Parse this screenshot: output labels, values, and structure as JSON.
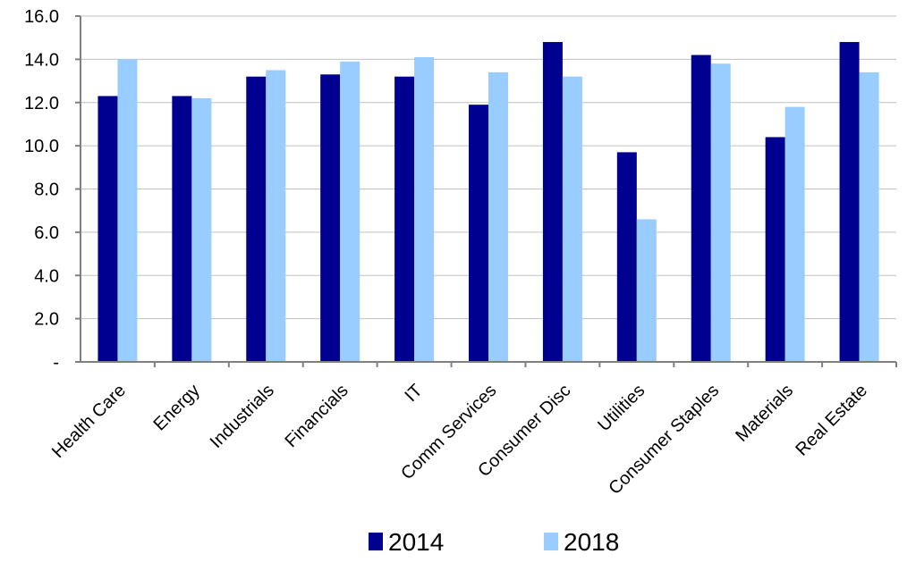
{
  "chart_data": {
    "type": "bar",
    "categories": [
      "Health Care",
      "Energy",
      "Industrials",
      "Financials",
      "IT",
      "Comm Services",
      "Consumer Disc",
      "Utilities",
      "Consumer Staples",
      "Materials",
      "Real Estate"
    ],
    "series": [
      {
        "name": "2014",
        "color": "#000090",
        "values": [
          12.3,
          12.3,
          13.2,
          13.3,
          13.2,
          11.9,
          14.8,
          9.7,
          14.2,
          10.4,
          14.8
        ]
      },
      {
        "name": "2018",
        "color": "#99ccff",
        "values": [
          14.0,
          12.2,
          13.5,
          13.9,
          14.1,
          13.4,
          13.2,
          6.6,
          13.8,
          11.8,
          13.4
        ]
      }
    ],
    "y_ticks": [
      "-",
      "2.0",
      "4.0",
      "6.0",
      "8.0",
      "10.0",
      "12.0",
      "14.0",
      "16.0"
    ],
    "ylim": [
      0,
      16
    ],
    "grid": true,
    "legend_position": "bottom",
    "title": "",
    "xlabel": "",
    "ylabel": ""
  }
}
